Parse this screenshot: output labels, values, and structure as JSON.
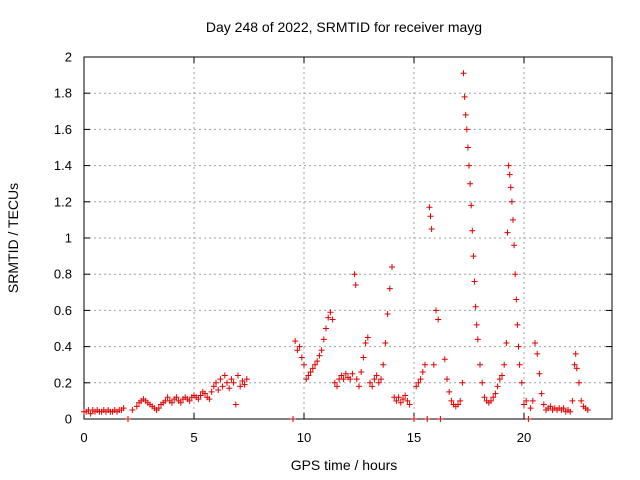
{
  "chart_data": {
    "type": "scatter",
    "title": "Day 248 of 2022, SRMTID for receiver mayg",
    "xlabel": "GPS time / hours",
    "ylabel": "SRMTID / TECUs",
    "xlim": [
      0,
      24
    ],
    "ylim": [
      0,
      2
    ],
    "xticks": [
      0,
      5,
      10,
      15,
      20
    ],
    "xtick_labels": [
      "0",
      "5",
      "10",
      "15",
      "20"
    ],
    "yticks": [
      0,
      0.2,
      0.4,
      0.6,
      0.8,
      1,
      1.2,
      1.4,
      1.6,
      1.8,
      2
    ],
    "ytick_labels": [
      "0",
      "0.2",
      "0.4",
      "0.6",
      "0.8",
      "1",
      "1.2",
      "1.4",
      "1.6",
      "1.8",
      "2"
    ],
    "grid": true,
    "marker": "+",
    "series": [
      {
        "name": "mayg",
        "color": "#e00000",
        "points": [
          [
            0.0,
            0.04
          ],
          [
            0.1,
            0.04
          ],
          [
            0.2,
            0.05
          ],
          [
            0.3,
            0.03
          ],
          [
            0.4,
            0.05
          ],
          [
            0.5,
            0.04
          ],
          [
            0.6,
            0.05
          ],
          [
            0.7,
            0.04
          ],
          [
            0.8,
            0.04
          ],
          [
            0.9,
            0.05
          ],
          [
            1.0,
            0.04
          ],
          [
            1.1,
            0.05
          ],
          [
            1.2,
            0.04
          ],
          [
            1.3,
            0.04
          ],
          [
            1.4,
            0.05
          ],
          [
            1.5,
            0.04
          ],
          [
            1.6,
            0.05
          ],
          [
            1.7,
            0.05
          ],
          [
            1.8,
            0.06
          ],
          [
            2.0,
            0.0
          ],
          [
            2.2,
            0.05
          ],
          [
            2.4,
            0.07
          ],
          [
            2.5,
            0.09
          ],
          [
            2.6,
            0.1
          ],
          [
            2.7,
            0.11
          ],
          [
            2.8,
            0.1
          ],
          [
            2.9,
            0.09
          ],
          [
            3.0,
            0.08
          ],
          [
            3.1,
            0.07
          ],
          [
            3.2,
            0.06
          ],
          [
            3.3,
            0.05
          ],
          [
            3.4,
            0.06
          ],
          [
            3.5,
            0.08
          ],
          [
            3.6,
            0.09
          ],
          [
            3.7,
            0.1
          ],
          [
            3.8,
            0.12
          ],
          [
            3.9,
            0.1
          ],
          [
            4.0,
            0.09
          ],
          [
            4.1,
            0.11
          ],
          [
            4.2,
            0.12
          ],
          [
            4.3,
            0.1
          ],
          [
            4.4,
            0.09
          ],
          [
            4.5,
            0.11
          ],
          [
            4.6,
            0.12
          ],
          [
            4.7,
            0.11
          ],
          [
            4.8,
            0.1
          ],
          [
            4.9,
            0.12
          ],
          [
            5.0,
            0.13
          ],
          [
            5.1,
            0.12
          ],
          [
            5.2,
            0.11
          ],
          [
            5.3,
            0.13
          ],
          [
            5.4,
            0.15
          ],
          [
            5.5,
            0.14
          ],
          [
            5.6,
            0.12
          ],
          [
            5.7,
            0.11
          ],
          [
            5.8,
            0.15
          ],
          [
            5.9,
            0.18
          ],
          [
            6.0,
            0.2
          ],
          [
            6.1,
            0.16
          ],
          [
            6.2,
            0.22
          ],
          [
            6.3,
            0.18
          ],
          [
            6.4,
            0.24
          ],
          [
            6.5,
            0.2
          ],
          [
            6.6,
            0.17
          ],
          [
            6.7,
            0.22
          ],
          [
            6.8,
            0.2
          ],
          [
            6.9,
            0.08
          ],
          [
            7.0,
            0.24
          ],
          [
            7.1,
            0.18
          ],
          [
            7.2,
            0.21
          ],
          [
            7.3,
            0.19
          ],
          [
            7.4,
            0.22
          ],
          [
            9.5,
            0.0
          ],
          [
            9.6,
            0.43
          ],
          [
            9.7,
            0.38
          ],
          [
            9.8,
            0.4
          ],
          [
            9.9,
            0.34
          ],
          [
            10.0,
            0.3
          ],
          [
            10.1,
            0.22
          ],
          [
            10.2,
            0.24
          ],
          [
            10.3,
            0.26
          ],
          [
            10.4,
            0.28
          ],
          [
            10.5,
            0.3
          ],
          [
            10.6,
            0.32
          ],
          [
            10.7,
            0.35
          ],
          [
            10.8,
            0.38
          ],
          [
            10.9,
            0.44
          ],
          [
            11.0,
            0.5
          ],
          [
            11.1,
            0.56
          ],
          [
            11.2,
            0.59
          ],
          [
            11.3,
            0.55
          ],
          [
            11.4,
            0.2
          ],
          [
            11.5,
            0.18
          ],
          [
            11.6,
            0.22
          ],
          [
            11.7,
            0.24
          ],
          [
            11.8,
            0.22
          ],
          [
            11.9,
            0.25
          ],
          [
            12.0,
            0.23
          ],
          [
            12.1,
            0.22
          ],
          [
            12.2,
            0.25
          ],
          [
            12.3,
            0.8
          ],
          [
            12.35,
            0.74
          ],
          [
            12.4,
            0.22
          ],
          [
            12.5,
            0.18
          ],
          [
            12.6,
            0.26
          ],
          [
            12.7,
            0.34
          ],
          [
            12.8,
            0.42
          ],
          [
            12.9,
            0.45
          ],
          [
            13.0,
            0.2
          ],
          [
            13.1,
            0.18
          ],
          [
            13.2,
            0.22
          ],
          [
            13.3,
            0.24
          ],
          [
            13.4,
            0.2
          ],
          [
            13.5,
            0.22
          ],
          [
            13.6,
            0.3
          ],
          [
            13.7,
            0.42
          ],
          [
            13.8,
            0.58
          ],
          [
            13.9,
            0.72
          ],
          [
            14.0,
            0.84
          ],
          [
            14.1,
            0.12
          ],
          [
            14.2,
            0.1
          ],
          [
            14.3,
            0.12
          ],
          [
            14.4,
            0.09
          ],
          [
            14.5,
            0.11
          ],
          [
            14.6,
            0.13
          ],
          [
            14.7,
            0.1
          ],
          [
            14.8,
            0.08
          ],
          [
            15.0,
            0.0
          ],
          [
            15.1,
            0.18
          ],
          [
            15.2,
            0.2
          ],
          [
            15.3,
            0.22
          ],
          [
            15.4,
            0.26
          ],
          [
            15.5,
            0.3
          ],
          [
            15.6,
            0.0
          ],
          [
            15.7,
            1.17
          ],
          [
            15.75,
            1.12
          ],
          [
            15.8,
            1.05
          ],
          [
            15.9,
            0.3
          ],
          [
            16.0,
            0.6
          ],
          [
            16.1,
            0.55
          ],
          [
            16.2,
            0.0
          ],
          [
            16.4,
            0.33
          ],
          [
            16.5,
            0.22
          ],
          [
            16.6,
            0.15
          ],
          [
            16.7,
            0.1
          ],
          [
            16.8,
            0.08
          ],
          [
            16.9,
            0.07
          ],
          [
            17.0,
            0.08
          ],
          [
            17.1,
            0.1
          ],
          [
            17.2,
            0.2
          ],
          [
            17.25,
            1.91
          ],
          [
            17.3,
            1.78
          ],
          [
            17.35,
            1.68
          ],
          [
            17.4,
            1.6
          ],
          [
            17.45,
            1.5
          ],
          [
            17.5,
            1.4
          ],
          [
            17.55,
            1.3
          ],
          [
            17.6,
            1.18
          ],
          [
            17.65,
            1.04
          ],
          [
            17.7,
            0.9
          ],
          [
            17.75,
            0.76
          ],
          [
            17.8,
            0.62
          ],
          [
            17.85,
            0.52
          ],
          [
            17.9,
            0.44
          ],
          [
            18.0,
            0.3
          ],
          [
            18.1,
            0.2
          ],
          [
            18.2,
            0.12
          ],
          [
            18.3,
            0.1
          ],
          [
            18.4,
            0.09
          ],
          [
            18.5,
            0.1
          ],
          [
            18.6,
            0.12
          ],
          [
            18.7,
            0.14
          ],
          [
            18.8,
            0.18
          ],
          [
            18.9,
            0.22
          ],
          [
            19.0,
            0.24
          ],
          [
            19.1,
            0.3
          ],
          [
            19.2,
            0.42
          ],
          [
            19.25,
            1.03
          ],
          [
            19.3,
            1.4
          ],
          [
            19.35,
            1.35
          ],
          [
            19.4,
            1.28
          ],
          [
            19.45,
            1.2
          ],
          [
            19.5,
            1.1
          ],
          [
            19.55,
            0.96
          ],
          [
            19.6,
            0.8
          ],
          [
            19.65,
            0.66
          ],
          [
            19.7,
            0.52
          ],
          [
            19.75,
            0.4
          ],
          [
            19.8,
            0.3
          ],
          [
            19.9,
            0.2
          ],
          [
            20.0,
            0.08
          ],
          [
            20.1,
            0.1
          ],
          [
            20.2,
            0.0
          ],
          [
            20.3,
            0.06
          ],
          [
            20.4,
            0.1
          ],
          [
            20.5,
            0.42
          ],
          [
            20.6,
            0.36
          ],
          [
            20.7,
            0.25
          ],
          [
            20.8,
            0.14
          ],
          [
            20.9,
            0.08
          ],
          [
            21.0,
            0.05
          ],
          [
            21.1,
            0.06
          ],
          [
            21.2,
            0.07
          ],
          [
            21.3,
            0.05
          ],
          [
            21.4,
            0.06
          ],
          [
            21.5,
            0.05
          ],
          [
            21.6,
            0.06
          ],
          [
            21.7,
            0.05
          ],
          [
            21.8,
            0.06
          ],
          [
            21.9,
            0.04
          ],
          [
            22.0,
            0.05
          ],
          [
            22.1,
            0.04
          ],
          [
            22.2,
            0.1
          ],
          [
            22.3,
            0.3
          ],
          [
            22.35,
            0.36
          ],
          [
            22.4,
            0.28
          ],
          [
            22.5,
            0.2
          ],
          [
            22.6,
            0.1
          ],
          [
            22.7,
            0.07
          ],
          [
            22.8,
            0.06
          ],
          [
            22.9,
            0.05
          ]
        ]
      }
    ]
  }
}
